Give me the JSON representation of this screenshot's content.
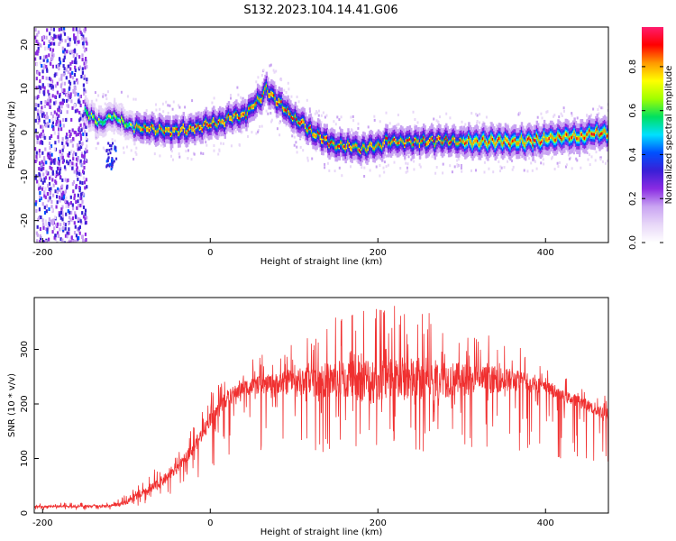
{
  "title": "S132.2023.104.14.41.G06",
  "colors": {
    "snr_line": "#f03030",
    "axis": "#000000",
    "background": "#ffffff"
  },
  "colormap": [
    "#ffffff",
    "#e8d8f8",
    "#c9a4f2",
    "#8a2be2",
    "#3a1fd6",
    "#0050ff",
    "#00e0ff",
    "#00e060",
    "#a0ff00",
    "#ffff00",
    "#ff9900",
    "#ff0000",
    "#ff1c6e"
  ],
  "chart_data": [
    {
      "type": "heatmap",
      "xlabel": "Height of straight line (km)",
      "ylabel": "Frequency (Hz)",
      "xlim": [
        -210,
        475
      ],
      "ylim": [
        -25,
        24
      ],
      "x_ticks": [
        -200,
        0,
        200,
        400
      ],
      "y_ticks": [
        20,
        10,
        0,
        -10,
        -20
      ],
      "colorbar": {
        "label": "Normalized spectral amplitude",
        "range": [
          0,
          0.98
        ],
        "ticks": [
          0.0,
          0.2,
          0.4,
          0.6,
          0.8
        ]
      },
      "ridge": {
        "x": [
          -150,
          -140,
          -130,
          -120,
          -110,
          -100,
          -90,
          -80,
          -60,
          -40,
          -20,
          0,
          10,
          20,
          30,
          40,
          50,
          60,
          65,
          70,
          80,
          90,
          100,
          110,
          120,
          130,
          140,
          150,
          160,
          170,
          180,
          190,
          200,
          210,
          220,
          230,
          240,
          250,
          260,
          270,
          280,
          290,
          300,
          320,
          340,
          360,
          380,
          400,
          420,
          440,
          460,
          475
        ],
        "y": [
          5,
          3,
          2,
          4,
          3,
          2,
          1,
          1,
          0.5,
          0.5,
          1,
          2,
          2,
          3,
          4,
          4,
          6,
          8,
          10,
          9,
          7,
          5,
          3,
          2,
          0,
          -1,
          -2,
          -3,
          -3,
          -3,
          -4,
          -3,
          -3,
          -2,
          -2,
          -2,
          -2,
          -2,
          -2,
          -2,
          -2,
          -2,
          -2,
          -2,
          -2,
          -2,
          -2,
          -1.5,
          -1,
          -1,
          0,
          0
        ]
      }
    },
    {
      "type": "line",
      "xlabel": "Height of straight line (km)",
      "ylabel": "SNR (10 * v/v)",
      "xlim": [
        -210,
        475
      ],
      "ylim": [
        0,
        395
      ],
      "x_ticks": [
        -200,
        0,
        200,
        400
      ],
      "y_ticks": [
        0,
        100,
        200,
        300
      ],
      "envelope": {
        "x": [
          -210,
          -150,
          -120,
          -100,
          -80,
          -60,
          -40,
          -20,
          0,
          20,
          40,
          60,
          80,
          100,
          150,
          200,
          250,
          300,
          350,
          380,
          400,
          420,
          440,
          460,
          475
        ],
        "mean": [
          12,
          12,
          13,
          20,
          35,
          55,
          80,
          120,
          170,
          210,
          230,
          235,
          238,
          240,
          245,
          245,
          245,
          245,
          245,
          240,
          230,
          215,
          205,
          190,
          180
        ],
        "peak": [
          18,
          20,
          22,
          35,
          60,
          90,
          110,
          160,
          220,
          260,
          280,
          290,
          300,
          320,
          360,
          395,
          375,
          345,
          320,
          300,
          265,
          250,
          240,
          230,
          225
        ]
      }
    }
  ]
}
